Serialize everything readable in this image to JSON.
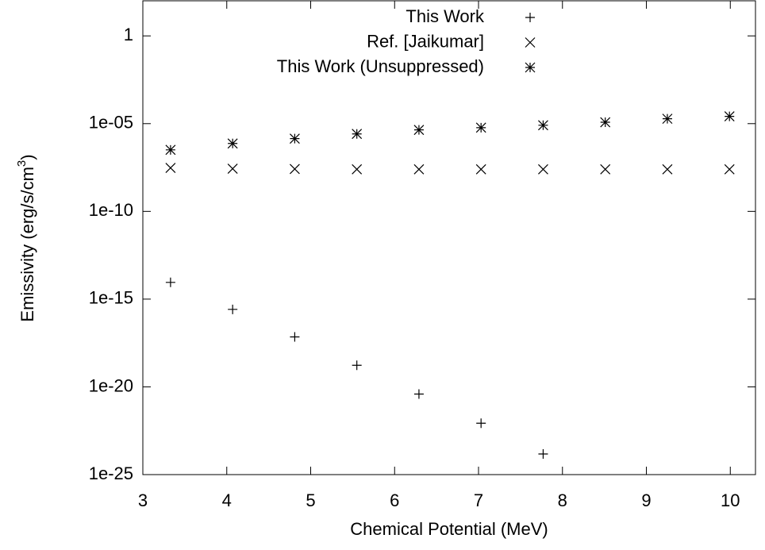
{
  "chart_data": {
    "type": "scatter",
    "x_label": "Chemical Potential (MeV)",
    "y_label": "Emissivity (erg/s/cm",
    "y_label_sup": "3",
    "y_label_end": ")",
    "log_y": true,
    "xlim": [
      3,
      10.3
    ],
    "ylim": [
      1e-25,
      100
    ],
    "xticks": [
      3,
      4,
      5,
      6,
      7,
      8,
      9,
      10
    ],
    "yticks": [
      {
        "value": 1e-25,
        "label": "1e-25"
      },
      {
        "value": 1e-20,
        "label": "1e-20"
      },
      {
        "value": 1e-15,
        "label": "1e-15"
      },
      {
        "value": 1e-10,
        "label": "1e-10"
      },
      {
        "value": 1e-05,
        "label": "1e-05"
      },
      1
    ],
    "legend": "top-right",
    "x": [
      3.33,
      4.07,
      4.81,
      5.55,
      6.29,
      7.03,
      7.77,
      8.51,
      9.25,
      9.99
    ],
    "series": [
      {
        "name": "This Work",
        "marker": "plus",
        "color": "#000000",
        "values": [
          9e-15,
          2.6e-16,
          7e-18,
          1.7e-19,
          3.9e-21,
          8.5e-23,
          1.5e-24,
          null,
          null,
          null
        ]
      },
      {
        "name": "Ref. [Jaikumar]",
        "marker": "cross",
        "color": "#000000",
        "values": [
          3e-08,
          2.7e-08,
          2.6e-08,
          2.5e-08,
          2.5e-08,
          2.5e-08,
          2.5e-08,
          2.5e-08,
          2.5e-08,
          2.5e-08
        ]
      },
      {
        "name": "This Work (Unsuppressed)",
        "marker": "star",
        "color": "#000000",
        "values": [
          3.2e-07,
          7.4e-07,
          1.4e-06,
          2.6e-06,
          4.4e-06,
          5.9e-06,
          8.1e-06,
          1.2e-05,
          1.9e-05,
          2.6e-05
        ]
      }
    ]
  }
}
